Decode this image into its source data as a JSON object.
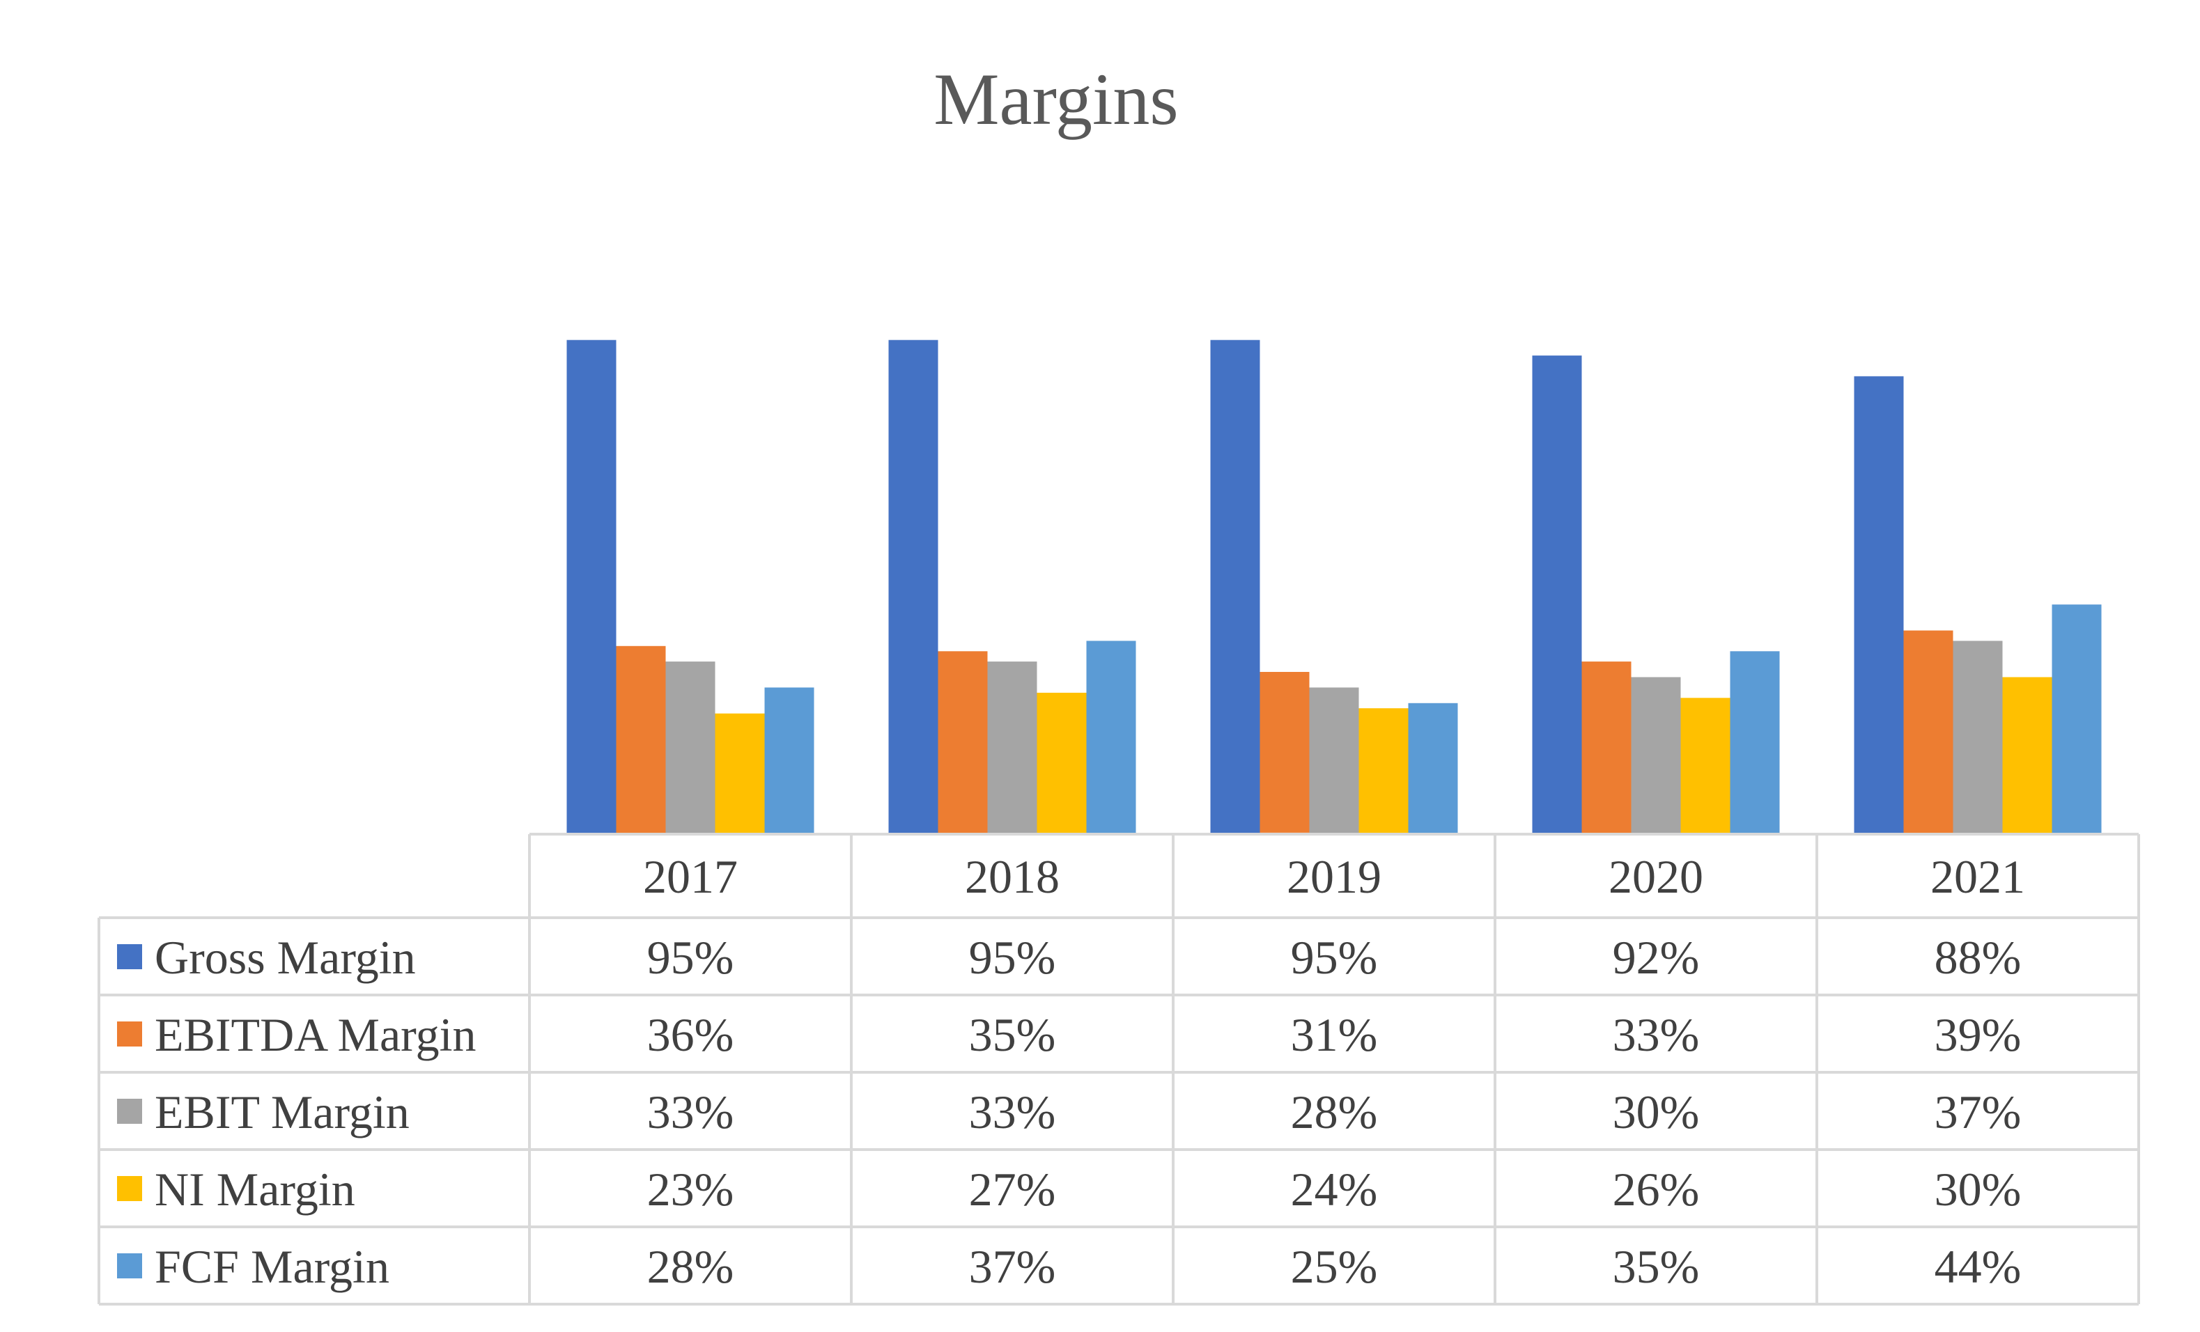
{
  "chart_data": {
    "type": "bar",
    "title": "Margins",
    "categories": [
      "2017",
      "2018",
      "2019",
      "2020",
      "2021"
    ],
    "series": [
      {
        "name": "Gross Margin",
        "color": "#4472C4",
        "values": [
          95,
          95,
          95,
          92,
          88
        ],
        "labels": [
          "95%",
          "95%",
          "95%",
          "92%",
          "88%"
        ]
      },
      {
        "name": "EBITDA Margin",
        "color": "#ED7D31",
        "values": [
          36,
          35,
          31,
          33,
          39
        ],
        "labels": [
          "36%",
          "35%",
          "31%",
          "33%",
          "39%"
        ]
      },
      {
        "name": "EBIT Margin",
        "color": "#A5A5A5",
        "values": [
          33,
          33,
          28,
          30,
          37
        ],
        "labels": [
          "33%",
          "33%",
          "28%",
          "30%",
          "37%"
        ]
      },
      {
        "name": "NI Margin",
        "color": "#FFC000",
        "values": [
          23,
          27,
          24,
          26,
          30
        ],
        "labels": [
          "23%",
          "27%",
          "24%",
          "26%",
          "30%"
        ]
      },
      {
        "name": "FCF Margin",
        "color": "#5B9BD5",
        "values": [
          28,
          37,
          25,
          35,
          44
        ],
        "labels": [
          "28%",
          "37%",
          "25%",
          "35%",
          "44%"
        ]
      }
    ],
    "ylim": [
      0,
      100
    ],
    "grid": false,
    "data_table": true,
    "legend": "in data table"
  }
}
